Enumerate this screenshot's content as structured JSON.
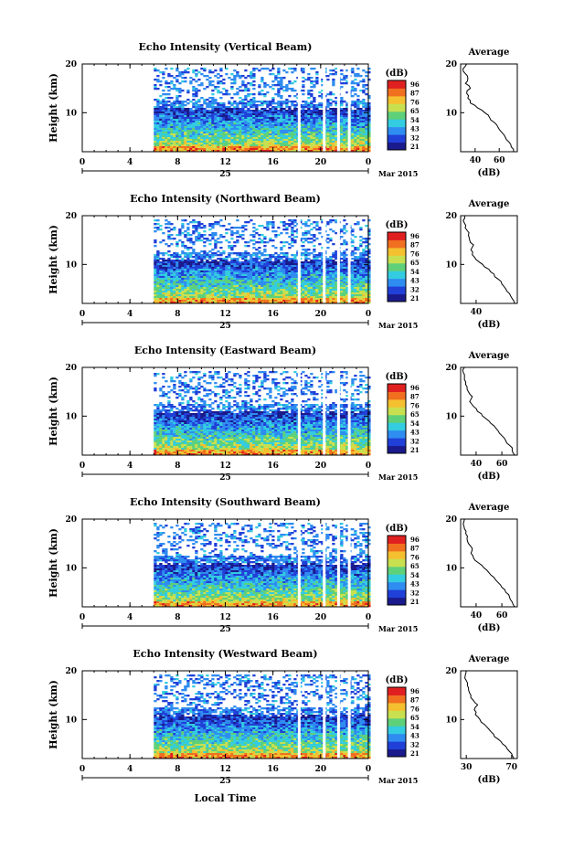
{
  "figure": {
    "xlabel": "Local Time",
    "date_label": "Mar 2015",
    "day_label": "25",
    "colorbar_unit": "(dB)",
    "colorbar_ticks": [
      "96",
      "87",
      "76",
      "65",
      "54",
      "43",
      "32",
      "21"
    ],
    "colorbar_colors": [
      "#1a1a8c",
      "#2040d8",
      "#2f8cf0",
      "#33cce0",
      "#5fd07a",
      "#c8e050",
      "#f5c030",
      "#f07020",
      "#e02020"
    ],
    "avg_title": "Average",
    "avg_xlabel": "(dB)"
  },
  "chart_data": [
    {
      "type": "heatmap",
      "title": "Echo Intensity (Vertical Beam)",
      "ylabel": "Height (km)",
      "xlim": [
        0,
        24
      ],
      "ylim": [
        2,
        20
      ],
      "x_ticks": [
        "0",
        "4",
        "8",
        "12",
        "16",
        "20",
        "0"
      ],
      "y_ticks": [
        "20",
        "10"
      ],
      "data_start_hour": 6,
      "gap_hours": [
        18.2,
        20.3,
        21.5,
        22.4
      ],
      "average_profile": {
        "x_ticks": [
          "40",
          "60"
        ],
        "xlim": [
          28,
          75
        ],
        "height_km": [
          2,
          3,
          4,
          5,
          6,
          7,
          8,
          9,
          10,
          11,
          12,
          13,
          14,
          15,
          16,
          17,
          18,
          19,
          20
        ],
        "db": [
          72,
          70,
          68,
          65,
          62,
          59,
          56,
          52,
          48,
          42,
          36,
          34,
          33,
          36,
          32,
          34,
          32,
          30,
          33
        ]
      }
    },
    {
      "type": "heatmap",
      "title": "Echo Intensity (Northward Beam)",
      "ylabel": "Height (km)",
      "xlim": [
        0,
        24
      ],
      "ylim": [
        2,
        20
      ],
      "x_ticks": [
        "0",
        "4",
        "8",
        "12",
        "16",
        "20",
        "0"
      ],
      "y_ticks": [
        "20",
        "10"
      ],
      "data_start_hour": 6,
      "gap_hours": [
        18.2,
        20.3,
        21.5,
        22.4
      ],
      "average_profile": {
        "x_ticks": [
          "40"
        ],
        "xlim": [
          28,
          72
        ],
        "height_km": [
          2,
          3,
          4,
          5,
          6,
          7,
          8,
          9,
          10,
          11,
          12,
          13,
          14,
          15,
          16,
          17,
          18,
          19,
          20
        ],
        "db": [
          70,
          68,
          66,
          63,
          60,
          57,
          54,
          50,
          45,
          40,
          37,
          36,
          38,
          35,
          34,
          33,
          32,
          30,
          31
        ]
      }
    },
    {
      "type": "heatmap",
      "title": "Echo Intensity (Eastward Beam)",
      "ylabel": "Height (km)",
      "xlim": [
        0,
        24
      ],
      "ylim": [
        2,
        20
      ],
      "x_ticks": [
        "0",
        "4",
        "8",
        "12",
        "16",
        "20",
        "0"
      ],
      "y_ticks": [
        "20",
        "10"
      ],
      "data_start_hour": 6,
      "gap_hours": [
        18.2,
        20.3,
        21.5,
        22.4
      ],
      "average_profile": {
        "x_ticks": [
          "40",
          "60"
        ],
        "xlim": [
          28,
          72
        ],
        "height_km": [
          2,
          3,
          4,
          5,
          6,
          7,
          8,
          9,
          10,
          11,
          12,
          13,
          14,
          15,
          16,
          17,
          18,
          19,
          20
        ],
        "db": [
          70,
          68,
          66,
          63,
          60,
          57,
          54,
          50,
          45,
          41,
          38,
          35,
          37,
          34,
          33,
          32,
          31,
          30,
          31
        ]
      }
    },
    {
      "type": "heatmap",
      "title": "Echo Intensity (Southward Beam)",
      "ylabel": "Height (km)",
      "xlim": [
        0,
        24
      ],
      "ylim": [
        2,
        20
      ],
      "x_ticks": [
        "0",
        "4",
        "8",
        "12",
        "16",
        "20",
        "0"
      ],
      "y_ticks": [
        "20",
        "10"
      ],
      "data_start_hour": 6,
      "gap_hours": [
        18.2,
        20.3,
        21.5,
        22.4
      ],
      "average_profile": {
        "x_ticks": [
          "40",
          "60"
        ],
        "xlim": [
          28,
          72
        ],
        "height_km": [
          2,
          3,
          4,
          5,
          6,
          7,
          8,
          9,
          10,
          11,
          12,
          13,
          14,
          15,
          16,
          17,
          18,
          19,
          20
        ],
        "db": [
          70,
          68,
          66,
          63,
          60,
          57,
          54,
          50,
          46,
          42,
          38,
          36,
          37,
          34,
          33,
          32,
          31,
          30,
          31
        ]
      }
    },
    {
      "type": "heatmap",
      "title": "Echo Intensity (Westward Beam)",
      "ylabel": "Height (km)",
      "xlim": [
        0,
        24
      ],
      "ylim": [
        2,
        20
      ],
      "x_ticks": [
        "0",
        "4",
        "8",
        "12",
        "16",
        "20",
        "0"
      ],
      "y_ticks": [
        "20",
        "10"
      ],
      "data_start_hour": 6,
      "gap_hours": [
        18.2,
        20.3,
        21.5,
        22.4
      ],
      "average_profile": {
        "x_ticks": [
          "30",
          "70"
        ],
        "xlim": [
          25,
          75
        ],
        "height_km": [
          2,
          3,
          4,
          5,
          6,
          7,
          8,
          9,
          10,
          11,
          12,
          13,
          14,
          15,
          16,
          17,
          18,
          19,
          20
        ],
        "db": [
          72,
          70,
          66,
          62,
          58,
          54,
          50,
          46,
          42,
          38,
          37,
          40,
          36,
          34,
          32,
          31,
          30,
          29,
          30
        ]
      }
    }
  ]
}
